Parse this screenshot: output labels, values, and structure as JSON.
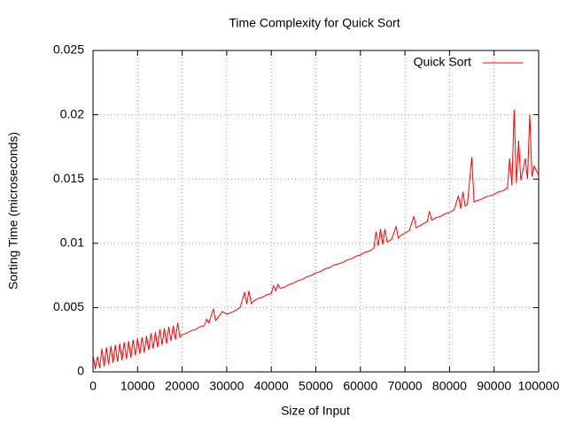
{
  "chart_data": {
    "type": "line",
    "title": "Time Complexity for Quick Sort",
    "x_label": "Size of Input",
    "y_label": "Sorting Time (microseconds)",
    "xlim": [
      0,
      100000
    ],
    "ylim": [
      0,
      0.025
    ],
    "xticks": [
      0,
      10000,
      20000,
      30000,
      40000,
      50000,
      60000,
      70000,
      80000,
      90000,
      100000
    ],
    "yticks": [
      0,
      0.005,
      0.01,
      0.015,
      0.02,
      0.025
    ],
    "grid": true,
    "legend": "top-right",
    "x": [
      0,
      500,
      1000,
      1500,
      2000,
      2500,
      3000,
      3500,
      4000,
      4500,
      5000,
      5500,
      6000,
      6500,
      7000,
      7500,
      8000,
      8500,
      9000,
      9500,
      10000,
      10500,
      11000,
      11500,
      12000,
      12500,
      13000,
      13500,
      14000,
      14500,
      15000,
      15500,
      16000,
      16500,
      17000,
      17500,
      18000,
      18500,
      19000,
      19500,
      20000,
      21000,
      22000,
      23000,
      24000,
      25000,
      25500,
      26000,
      27000,
      27500,
      28000,
      29000,
      30000,
      31000,
      32000,
      33000,
      34000,
      34500,
      35000,
      35500,
      36000,
      37000,
      38000,
      39000,
      40000,
      40500,
      41000,
      41500,
      42000,
      43000,
      44000,
      45000,
      46000,
      47000,
      48000,
      49000,
      50000,
      51000,
      52000,
      53000,
      54000,
      55000,
      56000,
      57000,
      58000,
      59000,
      60000,
      61000,
      62000,
      63000,
      63500,
      64000,
      64500,
      65000,
      65500,
      66000,
      67000,
      68000,
      68500,
      69000,
      70000,
      71000,
      72000,
      72500,
      73000,
      74000,
      75000,
      75500,
      76000,
      77000,
      78000,
      79000,
      80000,
      81000,
      82000,
      82500,
      83000,
      83500,
      84000,
      85000,
      85500,
      86000,
      87000,
      88000,
      89000,
      90000,
      91000,
      92000,
      93000,
      93500,
      94000,
      94500,
      95000,
      95500,
      96000,
      97000,
      97500,
      98000,
      98500,
      99000,
      100000
    ],
    "series": [
      {
        "name": "Quick Sort",
        "color": "#ff0000",
        "values": [
          0.0014,
          0.0002,
          0.0012,
          0.0003,
          0.0018,
          0.0004,
          0.0019,
          0.0006,
          0.002,
          0.0007,
          0.0021,
          0.0008,
          0.0022,
          0.0009,
          0.0023,
          0.001,
          0.0024,
          0.0011,
          0.0025,
          0.0013,
          0.0026,
          0.0014,
          0.0027,
          0.0015,
          0.0028,
          0.0017,
          0.003,
          0.0018,
          0.0031,
          0.0019,
          0.0033,
          0.0021,
          0.0034,
          0.0022,
          0.0035,
          0.0024,
          0.0036,
          0.0025,
          0.0038,
          0.0027,
          0.0029,
          0.003,
          0.0032,
          0.0033,
          0.0035,
          0.0036,
          0.0041,
          0.0038,
          0.0049,
          0.004,
          0.0042,
          0.0047,
          0.0045,
          0.0046,
          0.0048,
          0.005,
          0.0062,
          0.0053,
          0.0063,
          0.0053,
          0.0055,
          0.0057,
          0.0058,
          0.006,
          0.0061,
          0.0067,
          0.0063,
          0.0068,
          0.0065,
          0.0066,
          0.0068,
          0.0069,
          0.0071,
          0.0072,
          0.0074,
          0.0075,
          0.0077,
          0.0078,
          0.008,
          0.0081,
          0.0083,
          0.0084,
          0.0085,
          0.0087,
          0.0088,
          0.009,
          0.0091,
          0.0093,
          0.0094,
          0.0096,
          0.0109,
          0.0098,
          0.0111,
          0.0099,
          0.0111,
          0.0101,
          0.0103,
          0.0113,
          0.0104,
          0.0106,
          0.0108,
          0.011,
          0.0121,
          0.0112,
          0.0113,
          0.0115,
          0.0117,
          0.0125,
          0.0118,
          0.012,
          0.0121,
          0.0123,
          0.0124,
          0.0126,
          0.0137,
          0.0127,
          0.014,
          0.0129,
          0.013,
          0.0167,
          0.0132,
          0.0133,
          0.0134,
          0.0136,
          0.0137,
          0.0138,
          0.014,
          0.0141,
          0.0143,
          0.0166,
          0.0145,
          0.0204,
          0.0147,
          0.018,
          0.0149,
          0.0166,
          0.015,
          0.02,
          0.0152,
          0.016,
          0.0153
        ]
      }
    ]
  }
}
